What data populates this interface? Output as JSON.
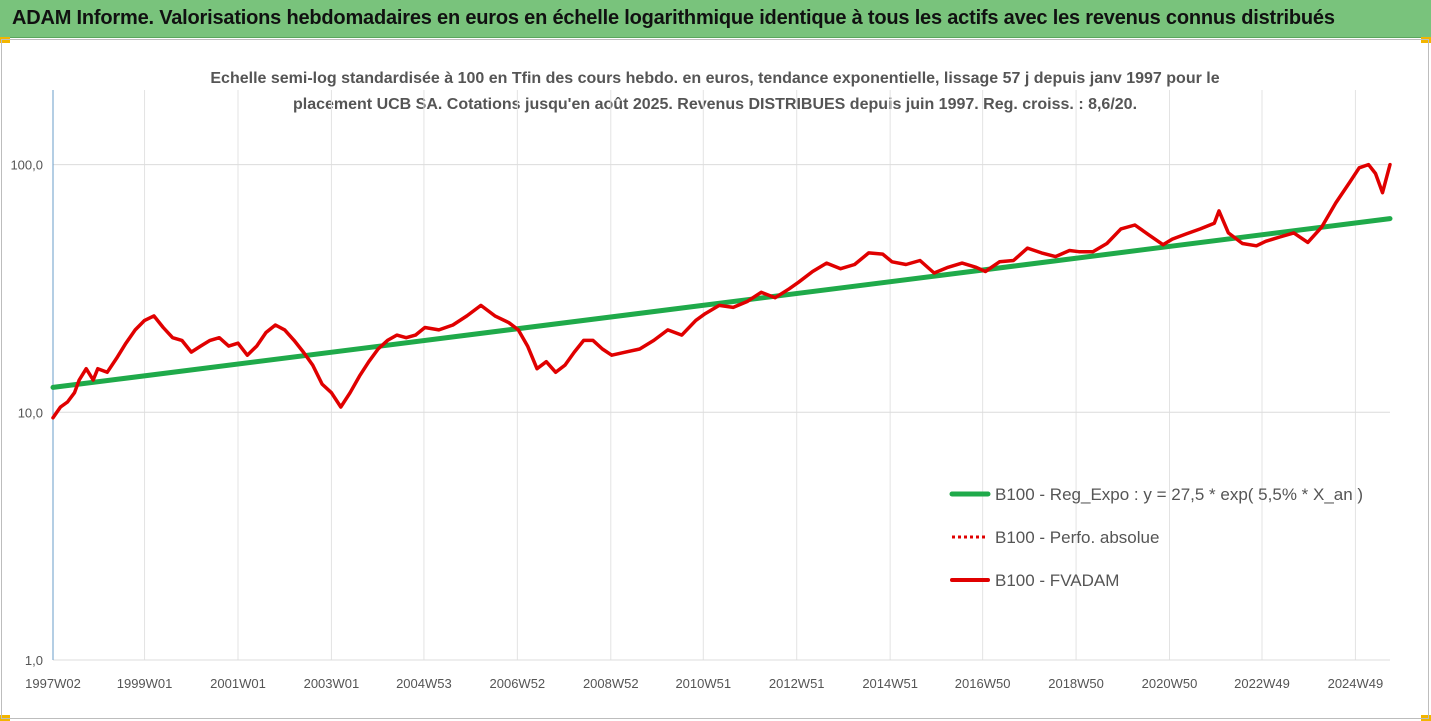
{
  "header": {
    "title": "ADAM Informe. Valorisations hebdomadaires en euros en échelle logarithmique identique à tous les actifs avec les revenus connus distribués"
  },
  "chart_data": {
    "type": "line",
    "title_line1": "Echelle semi-log standardisée à 100 en Tfin des cours hebdo. en euros, tendance exponentielle, lissage 57 j depuis janv 1997 pour le",
    "title_line2": "placement UCB SA. Cotations jusqu'en août 2025. Revenus DISTRIBUES depuis juin 1997. Reg. croiss. : 8,6/20.",
    "y_scale": "log",
    "ylim": [
      1,
      200
    ],
    "y_ticks": [
      {
        "value": 1,
        "label": "1,0"
      },
      {
        "value": 10,
        "label": "10,0"
      },
      {
        "value": 100,
        "label": "100,0"
      }
    ],
    "xlim": [
      1997.04,
      2025.66
    ],
    "x_ticks": [
      {
        "x": 1997.04,
        "label": "1997W02"
      },
      {
        "x": 1999.0,
        "label": "1999W01"
      },
      {
        "x": 2001.0,
        "label": "2001W01"
      },
      {
        "x": 2003.0,
        "label": "2003W01"
      },
      {
        "x": 2004.98,
        "label": "2004W53"
      },
      {
        "x": 2006.98,
        "label": "2006W52"
      },
      {
        "x": 2008.98,
        "label": "2008W52"
      },
      {
        "x": 2010.96,
        "label": "2010W51"
      },
      {
        "x": 2012.96,
        "label": "2012W51"
      },
      {
        "x": 2014.96,
        "label": "2014W51"
      },
      {
        "x": 2016.94,
        "label": "2016W50"
      },
      {
        "x": 2018.94,
        "label": "2018W50"
      },
      {
        "x": 2020.94,
        "label": "2020W50"
      },
      {
        "x": 2022.92,
        "label": "2022W49"
      },
      {
        "x": 2024.92,
        "label": "2024W49"
      }
    ],
    "grid": "vertical and horizontal",
    "legend_position": "bottom-right",
    "series": [
      {
        "name": "B100 - Reg_Expo : y = 27,5 * exp( 5,5% *  X_an )",
        "color": "#1faa4a",
        "style": "solid",
        "x": [
          1997.04,
          2025.66
        ],
        "y": [
          12.6,
          60.5
        ]
      },
      {
        "name": "B100 - Perfo. absolue",
        "color": "#e00000",
        "style": "dotted",
        "x": [],
        "y": []
      },
      {
        "name": "B100 - FVADAM",
        "color": "#e00000",
        "style": "solid",
        "x": [
          1997.04,
          1997.2,
          1997.35,
          1997.5,
          1997.6,
          1997.75,
          1997.9,
          1998.0,
          1998.2,
          1998.4,
          1998.6,
          1998.8,
          1999.0,
          1999.2,
          1999.4,
          1999.6,
          1999.8,
          2000.0,
          2000.2,
          2000.4,
          2000.6,
          2000.8,
          2001.0,
          2001.2,
          2001.4,
          2001.6,
          2001.8,
          2002.0,
          2002.2,
          2002.4,
          2002.6,
          2002.8,
          2003.0,
          2003.2,
          2003.4,
          2003.6,
          2003.8,
          2004.0,
          2004.2,
          2004.4,
          2004.6,
          2004.8,
          2005.0,
          2005.3,
          2005.6,
          2005.9,
          2006.2,
          2006.5,
          2006.8,
          2007.0,
          2007.2,
          2007.4,
          2007.6,
          2007.8,
          2008.0,
          2008.2,
          2008.4,
          2008.6,
          2008.8,
          2009.0,
          2009.3,
          2009.6,
          2009.9,
          2010.2,
          2010.5,
          2010.8,
          2011.0,
          2011.3,
          2011.6,
          2011.9,
          2012.2,
          2012.5,
          2012.8,
          2013.0,
          2013.3,
          2013.6,
          2013.9,
          2014.2,
          2014.5,
          2014.8,
          2015.0,
          2015.3,
          2015.6,
          2015.9,
          2016.2,
          2016.5,
          2016.8,
          2017.0,
          2017.3,
          2017.6,
          2017.9,
          2018.2,
          2018.5,
          2018.8,
          2019.0,
          2019.3,
          2019.6,
          2019.9,
          2020.2,
          2020.5,
          2020.8,
          2021.0,
          2021.3,
          2021.6,
          2021.9,
          2022.0,
          2022.2,
          2022.5,
          2022.8,
          2023.0,
          2023.3,
          2023.6,
          2023.9,
          2024.2,
          2024.5,
          2024.8,
          2025.0,
          2025.2,
          2025.35,
          2025.5,
          2025.66
        ],
        "y": [
          9.5,
          10.5,
          11.0,
          12.0,
          13.5,
          15.0,
          13.5,
          15.0,
          14.5,
          16.5,
          19.0,
          21.5,
          23.5,
          24.5,
          22.0,
          20.0,
          19.5,
          17.5,
          18.5,
          19.5,
          20.0,
          18.5,
          19.0,
          17.0,
          18.5,
          21.0,
          22.5,
          21.5,
          19.5,
          17.5,
          15.5,
          13.0,
          12.0,
          10.5,
          12.0,
          14.0,
          16.0,
          18.0,
          19.5,
          20.5,
          20.0,
          20.5,
          22.0,
          21.5,
          22.5,
          24.5,
          27.0,
          24.5,
          23.0,
          21.5,
          18.5,
          15.0,
          16.0,
          14.5,
          15.5,
          17.5,
          19.5,
          19.5,
          18.0,
          17.0,
          17.5,
          18.0,
          19.5,
          21.5,
          20.5,
          23.5,
          25.0,
          27.0,
          26.5,
          28.0,
          30.5,
          29.0,
          31.5,
          33.5,
          37.0,
          40.0,
          38.0,
          39.5,
          44.0,
          43.5,
          40.5,
          39.5,
          41.0,
          36.5,
          38.5,
          40.0,
          38.5,
          37.0,
          40.5,
          41.0,
          46.0,
          44.0,
          42.5,
          45.0,
          44.5,
          44.5,
          48.0,
          55.0,
          57.0,
          52.0,
          47.5,
          50.0,
          52.5,
          55.0,
          58.0,
          65.0,
          53.0,
          48.0,
          47.0,
          49.0,
          51.0,
          53.0,
          48.5,
          56.0,
          70.0,
          85.0,
          97.0,
          100.0,
          92.0,
          77.0,
          100.0
        ]
      }
    ]
  }
}
